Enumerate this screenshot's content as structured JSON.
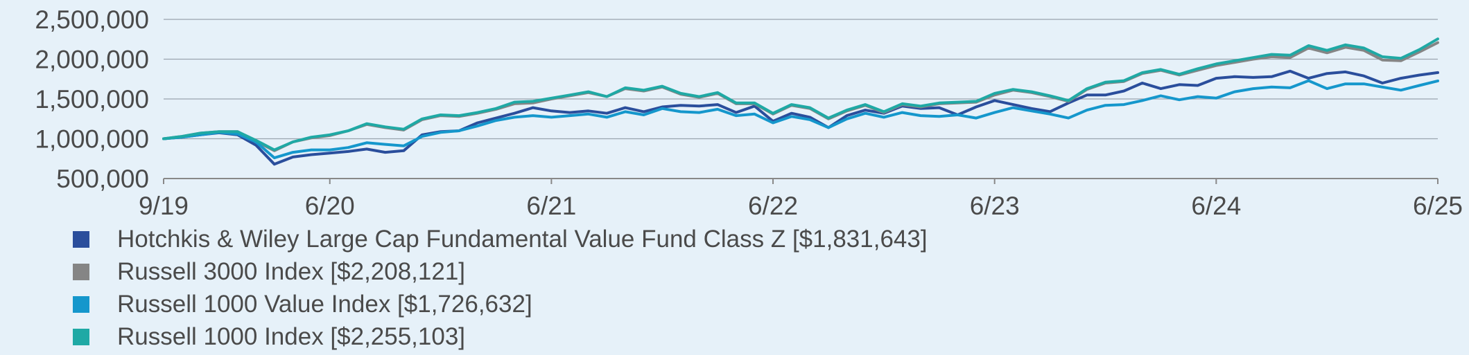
{
  "chart_data": {
    "type": "line",
    "title": "",
    "xlabel": "",
    "ylabel": "",
    "ylim": [
      500000,
      2500000
    ],
    "yticks": [
      500000,
      1000000,
      1500000,
      2000000,
      2500000
    ],
    "ytick_labels": [
      "500,000",
      "1,000,000",
      "1,500,000",
      "2,000,000",
      "2,500,000"
    ],
    "x": [
      "9/19",
      "10/19",
      "11/19",
      "12/19",
      "1/20",
      "2/20",
      "3/20",
      "4/20",
      "5/20",
      "6/20",
      "7/20",
      "8/20",
      "9/20",
      "10/20",
      "11/20",
      "12/20",
      "1/21",
      "2/21",
      "3/21",
      "4/21",
      "5/21",
      "6/21",
      "7/21",
      "8/21",
      "9/21",
      "10/21",
      "11/21",
      "12/21",
      "1/22",
      "2/22",
      "3/22",
      "4/22",
      "5/22",
      "6/22",
      "7/22",
      "8/22",
      "9/22",
      "10/22",
      "11/22",
      "12/22",
      "1/23",
      "2/23",
      "3/23",
      "4/23",
      "5/23",
      "6/23",
      "7/23",
      "8/23",
      "9/23",
      "10/23",
      "11/23",
      "12/23",
      "1/24",
      "2/24",
      "3/24",
      "4/24",
      "5/24",
      "6/24",
      "7/24",
      "8/24",
      "9/24",
      "10/24",
      "11/24",
      "12/24",
      "1/25",
      "2/25",
      "3/25",
      "4/25",
      "5/25",
      "6/25"
    ],
    "xtick_labels": [
      "9/19",
      "6/20",
      "6/21",
      "6/22",
      "6/23",
      "6/24",
      "6/25"
    ],
    "grid": true,
    "legend_position": "bottom",
    "series": [
      {
        "name": "Hotchkis & Wiley Large Cap Fundamental Value Fund Class Z [$1,831,643]",
        "color": "#2a4e9c",
        "values": [
          1000000,
          1020000,
          1050000,
          1075000,
          1050000,
          920000,
          680000,
          770000,
          800000,
          820000,
          840000,
          870000,
          830000,
          850000,
          1050000,
          1090000,
          1100000,
          1200000,
          1260000,
          1320000,
          1390000,
          1350000,
          1330000,
          1350000,
          1320000,
          1390000,
          1340000,
          1400000,
          1420000,
          1410000,
          1430000,
          1330000,
          1410000,
          1220000,
          1320000,
          1270000,
          1140000,
          1290000,
          1360000,
          1320000,
          1410000,
          1380000,
          1390000,
          1300000,
          1400000,
          1480000,
          1430000,
          1380000,
          1340000,
          1450000,
          1550000,
          1550000,
          1600000,
          1700000,
          1630000,
          1680000,
          1670000,
          1760000,
          1780000,
          1770000,
          1780000,
          1850000,
          1760000,
          1820000,
          1840000,
          1790000,
          1700000,
          1760000,
          1800000,
          1831643
        ]
      },
      {
        "name": "Russell 3000 Index [$2,208,121]",
        "color": "#858585",
        "values": [
          1000000,
          1030000,
          1070000,
          1090000,
          1090000,
          970000,
          850000,
          960000,
          1010000,
          1040000,
          1100000,
          1180000,
          1140000,
          1110000,
          1240000,
          1290000,
          1280000,
          1320000,
          1370000,
          1440000,
          1450000,
          1500000,
          1540000,
          1580000,
          1530000,
          1630000,
          1600000,
          1650000,
          1560000,
          1520000,
          1570000,
          1440000,
          1440000,
          1310000,
          1420000,
          1380000,
          1250000,
          1350000,
          1420000,
          1330000,
          1430000,
          1400000,
          1440000,
          1450000,
          1460000,
          1550000,
          1610000,
          1580000,
          1530000,
          1470000,
          1620000,
          1700000,
          1720000,
          1820000,
          1860000,
          1800000,
          1860000,
          1920000,
          1960000,
          2000000,
          2030000,
          2020000,
          2140000,
          2080000,
          2150000,
          2110000,
          1990000,
          1980000,
          2090000,
          2208121
        ]
      },
      {
        "name": "Russell 1000 Value Index [$1,726,632]",
        "color": "#1597cc",
        "values": [
          1000000,
          1020000,
          1050000,
          1080000,
          1060000,
          960000,
          760000,
          830000,
          860000,
          860000,
          890000,
          950000,
          930000,
          910000,
          1030000,
          1080000,
          1100000,
          1160000,
          1230000,
          1270000,
          1290000,
          1270000,
          1290000,
          1310000,
          1270000,
          1340000,
          1300000,
          1380000,
          1340000,
          1330000,
          1370000,
          1290000,
          1310000,
          1200000,
          1280000,
          1240000,
          1140000,
          1250000,
          1320000,
          1270000,
          1330000,
          1290000,
          1280000,
          1300000,
          1260000,
          1330000,
          1390000,
          1350000,
          1310000,
          1260000,
          1360000,
          1420000,
          1430000,
          1480000,
          1540000,
          1490000,
          1530000,
          1510000,
          1590000,
          1630000,
          1650000,
          1640000,
          1730000,
          1630000,
          1690000,
          1690000,
          1650000,
          1610000,
          1670000,
          1726632
        ]
      },
      {
        "name": "Russell 1000 Index [$2,255,103]",
        "color": "#1fa9a5",
        "values": [
          1000000,
          1030000,
          1070000,
          1090000,
          1090000,
          980000,
          860000,
          960000,
          1020000,
          1050000,
          1100000,
          1190000,
          1150000,
          1120000,
          1250000,
          1300000,
          1290000,
          1330000,
          1380000,
          1460000,
          1470000,
          1510000,
          1550000,
          1590000,
          1530000,
          1640000,
          1610000,
          1660000,
          1570000,
          1530000,
          1580000,
          1450000,
          1450000,
          1320000,
          1430000,
          1390000,
          1260000,
          1360000,
          1430000,
          1340000,
          1440000,
          1410000,
          1450000,
          1460000,
          1470000,
          1570000,
          1620000,
          1590000,
          1540000,
          1480000,
          1630000,
          1710000,
          1730000,
          1830000,
          1870000,
          1810000,
          1880000,
          1940000,
          1980000,
          2020000,
          2060000,
          2050000,
          2170000,
          2110000,
          2180000,
          2140000,
          2030000,
          2010000,
          2120000,
          2255103
        ]
      }
    ]
  }
}
